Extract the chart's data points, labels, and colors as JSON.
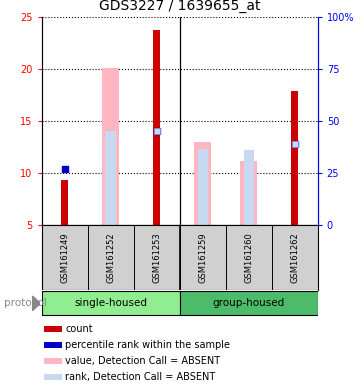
{
  "title": "GDS3227 / 1639655_at",
  "samples": [
    "GSM161249",
    "GSM161252",
    "GSM161253",
    "GSM161259",
    "GSM161260",
    "GSM161262"
  ],
  "count_values": [
    9.3,
    null,
    23.8,
    null,
    null,
    17.9
  ],
  "rank_values": [
    10.4,
    null,
    14.0,
    null,
    null,
    12.8
  ],
  "absent_value_bars": [
    null,
    20.1,
    null,
    13.0,
    11.1,
    null
  ],
  "absent_rank_bars": [
    null,
    14.0,
    null,
    12.3,
    12.2,
    null
  ],
  "absent_rank_dots": [
    null,
    null,
    14.0,
    null,
    null,
    12.8
  ],
  "ylim_left": [
    5,
    25
  ],
  "ylim_right": [
    0,
    100
  ],
  "yticks_left": [
    5,
    10,
    15,
    20,
    25
  ],
  "yticks_right": [
    0,
    25,
    50,
    75,
    100
  ],
  "bar_bottom": 5,
  "count_color": "#CC0000",
  "rank_color": "#0000CC",
  "absent_value_color": "#FFB6C1",
  "absent_rank_color": "#C8D8F0",
  "sample_box_color": "#D0D0D0",
  "single_housed_color": "#90EE90",
  "group_housed_color": "#4CBB6A",
  "legend_items": [
    {
      "color": "#CC0000",
      "label": "count"
    },
    {
      "color": "#0000CC",
      "label": "percentile rank within the sample"
    },
    {
      "color": "#FFB6C1",
      "label": "value, Detection Call = ABSENT"
    },
    {
      "color": "#C8D8F0",
      "label": "rank, Detection Call = ABSENT"
    }
  ],
  "title_fontsize": 10,
  "tick_fontsize": 7,
  "axis_label_fontsize": 7,
  "legend_fontsize": 7,
  "sample_fontsize": 6
}
